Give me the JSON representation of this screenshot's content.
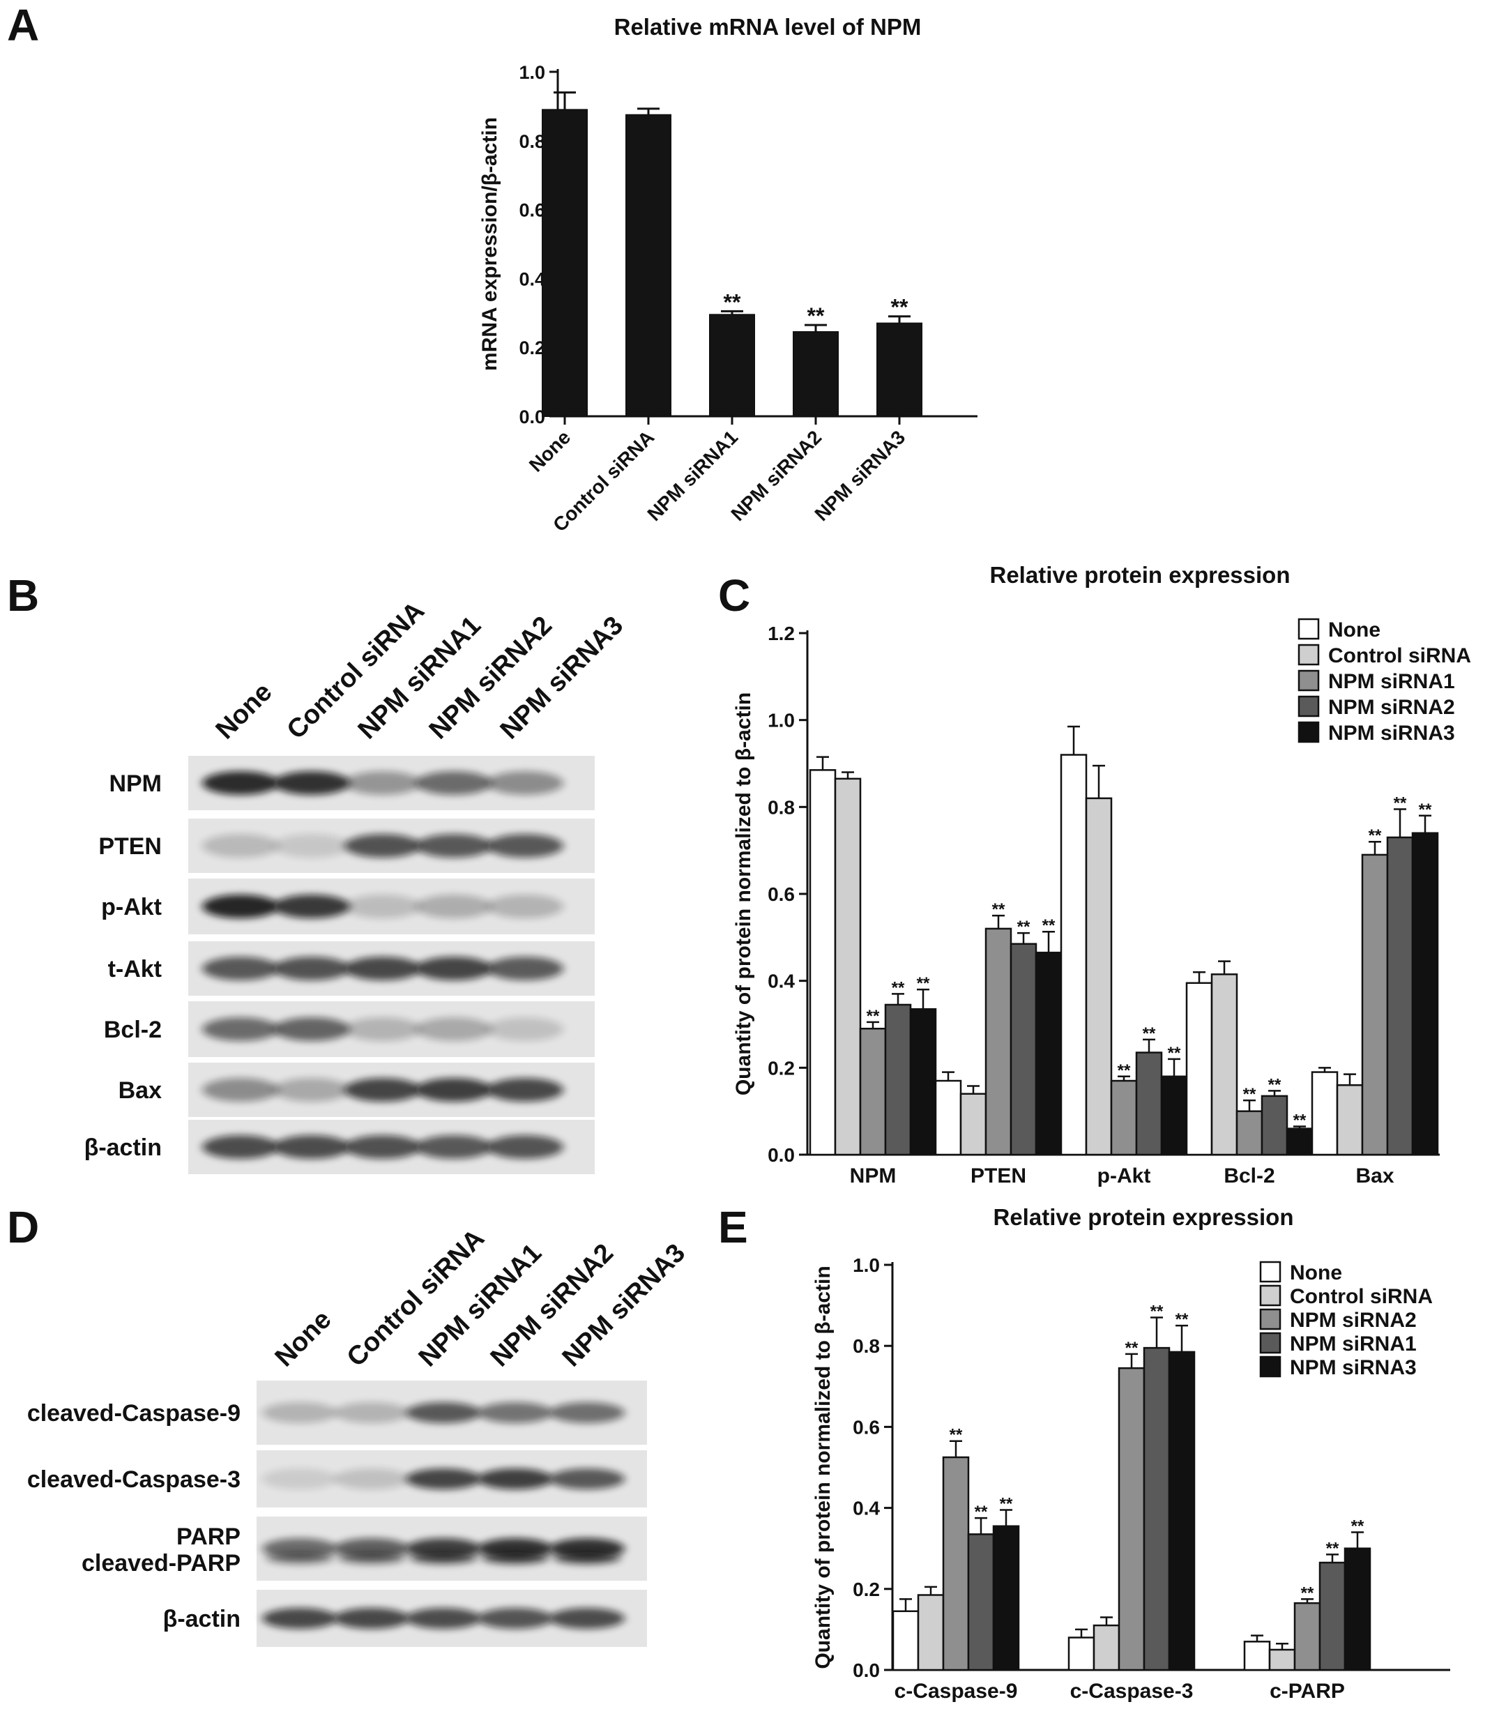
{
  "panels": {
    "A": {
      "letter": "A"
    },
    "B": {
      "letter": "B"
    },
    "C": {
      "letter": "C"
    },
    "D": {
      "letter": "D"
    },
    "E": {
      "letter": "E"
    }
  },
  "blot_B": {
    "lanes": [
      "None",
      "Control siRNA",
      "NPM siRNA1",
      "NPM siRNA2",
      "NPM siRNA3"
    ],
    "rows": [
      {
        "label": "NPM",
        "intensity": [
          0.95,
          0.92,
          0.4,
          0.62,
          0.45
        ]
      },
      {
        "label": "PTEN",
        "intensity": [
          0.22,
          0.15,
          0.75,
          0.72,
          0.72
        ]
      },
      {
        "label": "p-Akt",
        "intensity": [
          0.98,
          0.88,
          0.2,
          0.28,
          0.25
        ]
      },
      {
        "label": "t-Akt",
        "intensity": [
          0.72,
          0.75,
          0.8,
          0.82,
          0.7
        ]
      },
      {
        "label": "Bcl-2",
        "intensity": [
          0.62,
          0.66,
          0.25,
          0.3,
          0.18
        ]
      },
      {
        "label": "Bax",
        "intensity": [
          0.45,
          0.3,
          0.82,
          0.85,
          0.8
        ]
      },
      {
        "label": "β-actin",
        "intensity": [
          0.78,
          0.78,
          0.76,
          0.72,
          0.74
        ]
      }
    ]
  },
  "blot_D": {
    "lanes": [
      "None",
      "Control siRNA",
      "NPM siRNA1",
      "NPM siRNA2",
      "NPM siRNA3"
    ],
    "rows": [
      {
        "label": "cleaved-Caspase-9",
        "intensity": [
          0.25,
          0.25,
          0.72,
          0.58,
          0.6
        ]
      },
      {
        "label": "cleaved-Caspase-3",
        "intensity": [
          0.12,
          0.18,
          0.82,
          0.85,
          0.72
        ]
      },
      {
        "label": "PARP",
        "label2": "cleaved-PARP",
        "intensity": [
          0.62,
          0.68,
          0.85,
          0.92,
          0.92
        ]
      },
      {
        "label": "β-actin",
        "intensity": [
          0.8,
          0.8,
          0.78,
          0.74,
          0.78
        ]
      }
    ]
  },
  "chart_data": [
    {
      "panel": "A",
      "type": "bar",
      "title": "Relative mRNA level of NPM",
      "ylabel": "mRNA expression/β-actin",
      "xlabel": "",
      "ylim": [
        0,
        1.0
      ],
      "yticks": [
        "0.0",
        "0.2",
        "0.4",
        "0.6",
        "0.8",
        "1.0"
      ],
      "categories": [
        "None",
        "Control siRNA",
        "NPM siRNA1",
        "NPM siRNA2",
        "NPM siRNA3"
      ],
      "values": [
        0.89,
        0.875,
        0.295,
        0.245,
        0.27
      ],
      "errors": [
        0.05,
        0.018,
        0.01,
        0.02,
        0.02
      ],
      "significance": [
        "",
        "",
        "**",
        "**",
        "**"
      ],
      "color": "#141414"
    },
    {
      "panel": "C",
      "type": "bar",
      "title": "Relative protein expression",
      "ylabel": "Quantity of protein normalized to β-actin",
      "xlabel": "",
      "ylim": [
        0,
        1.2
      ],
      "yticks": [
        "0.0",
        "0.2",
        "0.4",
        "0.6",
        "0.8",
        "1.0",
        "1.2"
      ],
      "categories": [
        "NPM",
        "PTEN",
        "p-Akt",
        "Bcl-2",
        "Bax"
      ],
      "legend_position": "top-right",
      "series": [
        {
          "name": "None",
          "color": "#ffffff",
          "values": [
            0.885,
            0.17,
            0.92,
            0.395,
            0.19
          ],
          "errors": [
            0.03,
            0.02,
            0.065,
            0.025,
            0.01
          ],
          "significance": [
            "",
            "",
            "",
            "",
            ""
          ]
        },
        {
          "name": "Control siRNA",
          "color": "#cfcfcf",
          "values": [
            0.865,
            0.14,
            0.82,
            0.415,
            0.16
          ],
          "errors": [
            0.015,
            0.018,
            0.075,
            0.03,
            0.025
          ],
          "significance": [
            "",
            "",
            "",
            "",
            ""
          ]
        },
        {
          "name": "NPM siRNA1",
          "color": "#8f8f8f",
          "values": [
            0.29,
            0.52,
            0.17,
            0.1,
            0.69
          ],
          "errors": [
            0.015,
            0.03,
            0.01,
            0.025,
            0.03
          ],
          "significance": [
            "**",
            "**",
            "**",
            "**",
            "**"
          ]
        },
        {
          "name": "NPM siRNA2",
          "color": "#5a5a5a",
          "values": [
            0.345,
            0.485,
            0.235,
            0.135,
            0.73
          ],
          "errors": [
            0.025,
            0.025,
            0.03,
            0.012,
            0.065
          ],
          "significance": [
            "**",
            "**",
            "**",
            "**",
            "**"
          ]
        },
        {
          "name": "NPM siRNA3",
          "color": "#111111",
          "values": [
            0.335,
            0.465,
            0.18,
            0.06,
            0.74
          ],
          "errors": [
            0.045,
            0.048,
            0.04,
            0.005,
            0.04
          ],
          "significance": [
            "**",
            "**",
            "**",
            "**",
            "**"
          ]
        }
      ]
    },
    {
      "panel": "E",
      "type": "bar",
      "title": "Relative protein expression",
      "ylabel": "Quantity of protein normalized to β-actin",
      "xlabel": "",
      "ylim": [
        0,
        1.0
      ],
      "yticks": [
        "0.0",
        "0.2",
        "0.4",
        "0.6",
        "0.8",
        "1.0"
      ],
      "categories": [
        "c-Caspase-9",
        "c-Caspase-3",
        "c-PARP"
      ],
      "legend_position": "top-right",
      "series": [
        {
          "name": "None",
          "color": "#ffffff",
          "values": [
            0.145,
            0.08,
            0.07
          ],
          "errors": [
            0.03,
            0.02,
            0.015
          ],
          "significance": [
            "",
            "",
            ""
          ]
        },
        {
          "name": "Control siRNA",
          "color": "#cfcfcf",
          "values": [
            0.185,
            0.11,
            0.05
          ],
          "errors": [
            0.02,
            0.02,
            0.015
          ],
          "significance": [
            "",
            "",
            ""
          ]
        },
        {
          "name": "NPM siRNA2",
          "color": "#8f8f8f",
          "values": [
            0.525,
            0.745,
            0.165
          ],
          "errors": [
            0.04,
            0.035,
            0.01
          ],
          "significance": [
            "**",
            "**",
            "**"
          ]
        },
        {
          "name": "NPM siRNA1",
          "color": "#5a5a5a",
          "values": [
            0.335,
            0.795,
            0.265
          ],
          "errors": [
            0.04,
            0.075,
            0.02
          ],
          "significance": [
            "**",
            "**",
            "**"
          ]
        },
        {
          "name": "NPM siRNA3",
          "color": "#111111",
          "values": [
            0.355,
            0.785,
            0.3
          ],
          "errors": [
            0.04,
            0.065,
            0.04
          ],
          "significance": [
            "**",
            "**",
            "**"
          ]
        }
      ]
    }
  ]
}
